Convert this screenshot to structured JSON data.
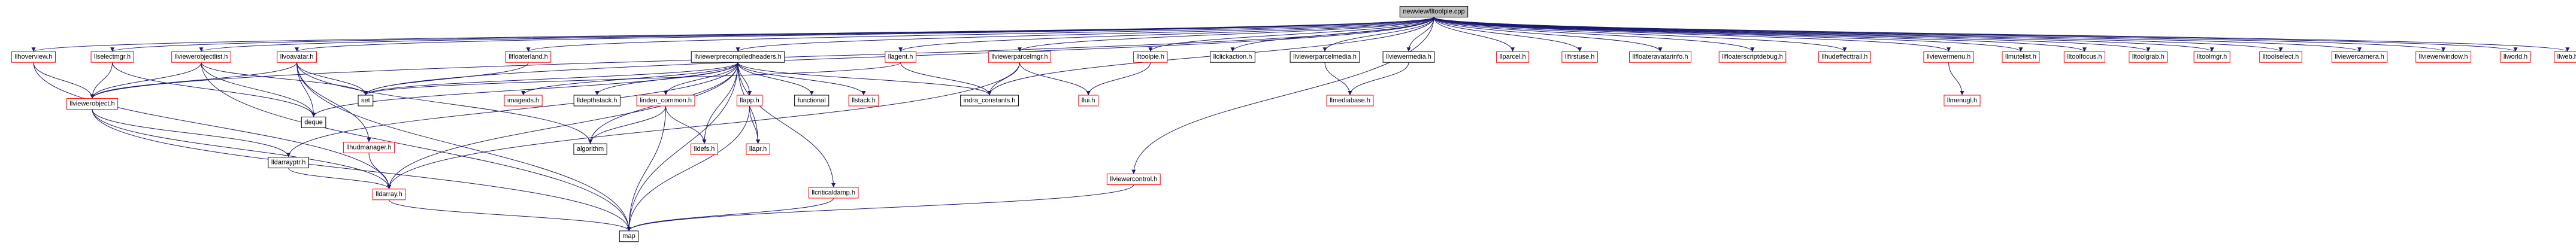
{
  "nodes": [
    {
      "label": "newview/lltoolpie.cpp",
      "color": "#000000"
    },
    {
      "label": "llhoverview.h",
      "color": "#ff0000"
    },
    {
      "label": "llselectmgr.h",
      "color": "#ff0000"
    },
    {
      "label": "llviewerobjectlist.h",
      "color": "#ff0000"
    },
    {
      "label": "llvoavatar.h",
      "color": "#ff0000"
    },
    {
      "label": "llfloaterland.h",
      "color": "#ff0000"
    },
    {
      "label": "llviewerprecompiledheaders.h",
      "color": "#000000"
    },
    {
      "label": "llagent.h",
      "color": "#ff0000"
    },
    {
      "label": "llviewerparcelmgr.h",
      "color": "#ff0000"
    },
    {
      "label": "lltoolpie.h",
      "color": "#ff0000"
    },
    {
      "label": "llclickaction.h",
      "color": "#000000"
    },
    {
      "label": "llviewerparcelmedia.h",
      "color": "#000000"
    },
    {
      "label": "llviewermedia.h",
      "color": "#000000"
    },
    {
      "label": "llparcel.h",
      "color": "#ff0000"
    },
    {
      "label": "llfirstuse.h",
      "color": "#ff0000"
    },
    {
      "label": "llfloateravatarinfo.h",
      "color": "#ff0000"
    },
    {
      "label": "llfloaterscriptdebug.h",
      "color": "#ff0000"
    },
    {
      "label": "llhudeffecttrail.h",
      "color": "#ff0000"
    },
    {
      "label": "llviewermenu.h",
      "color": "#ff0000"
    },
    {
      "label": "llmutelist.h",
      "color": "#ff0000"
    },
    {
      "label": "lltoolfocus.h",
      "color": "#ff0000"
    },
    {
      "label": "lltoolgrab.h",
      "color": "#ff0000"
    },
    {
      "label": "lltoolmgr.h",
      "color": "#ff0000"
    },
    {
      "label": "lltoolselect.h",
      "color": "#ff0000"
    },
    {
      "label": "llviewercamera.h",
      "color": "#ff0000"
    },
    {
      "label": "llviewerwindow.h",
      "color": "#ff0000"
    },
    {
      "label": "llworld.h",
      "color": "#ff0000"
    },
    {
      "label": "llweb.h",
      "color": "#ff0000"
    },
    {
      "label": "llviewerobject.h",
      "color": "#ff0000"
    },
    {
      "label": "set",
      "color": "#000000"
    },
    {
      "label": "deque",
      "color": "#000000"
    },
    {
      "label": "imageids.h",
      "color": "#ff0000"
    },
    {
      "label": "lldepthstack.h",
      "color": "#000000"
    },
    {
      "label": "linden_common.h",
      "color": "#ff0000"
    },
    {
      "label": "llapp.h",
      "color": "#ff0000"
    },
    {
      "label": "functional",
      "color": "#000000"
    },
    {
      "label": "llstack.h",
      "color": "#ff0000"
    },
    {
      "label": "indra_constants.h",
      "color": "#000000"
    },
    {
      "label": "llui.h",
      "color": "#ff0000"
    },
    {
      "label": "llmediabase.h",
      "color": "#ff0000"
    },
    {
      "label": "llmenugl.h",
      "color": "#ff0000"
    },
    {
      "label": "lldarrayptr.h",
      "color": "#000000"
    },
    {
      "label": "llhudmanager.h",
      "color": "#ff0000"
    },
    {
      "label": "algorithm",
      "color": "#000000"
    },
    {
      "label": "lldefs.h",
      "color": "#ff0000"
    },
    {
      "label": "llapr.h",
      "color": "#ff0000"
    },
    {
      "label": "lldarray.h",
      "color": "#ff0000"
    },
    {
      "label": "llcriticaldamp.h",
      "color": "#ff0000"
    },
    {
      "label": "llviewercontrol.h",
      "color": "#ff0000"
    },
    {
      "label": "map",
      "color": "#000000"
    }
  ]
}
